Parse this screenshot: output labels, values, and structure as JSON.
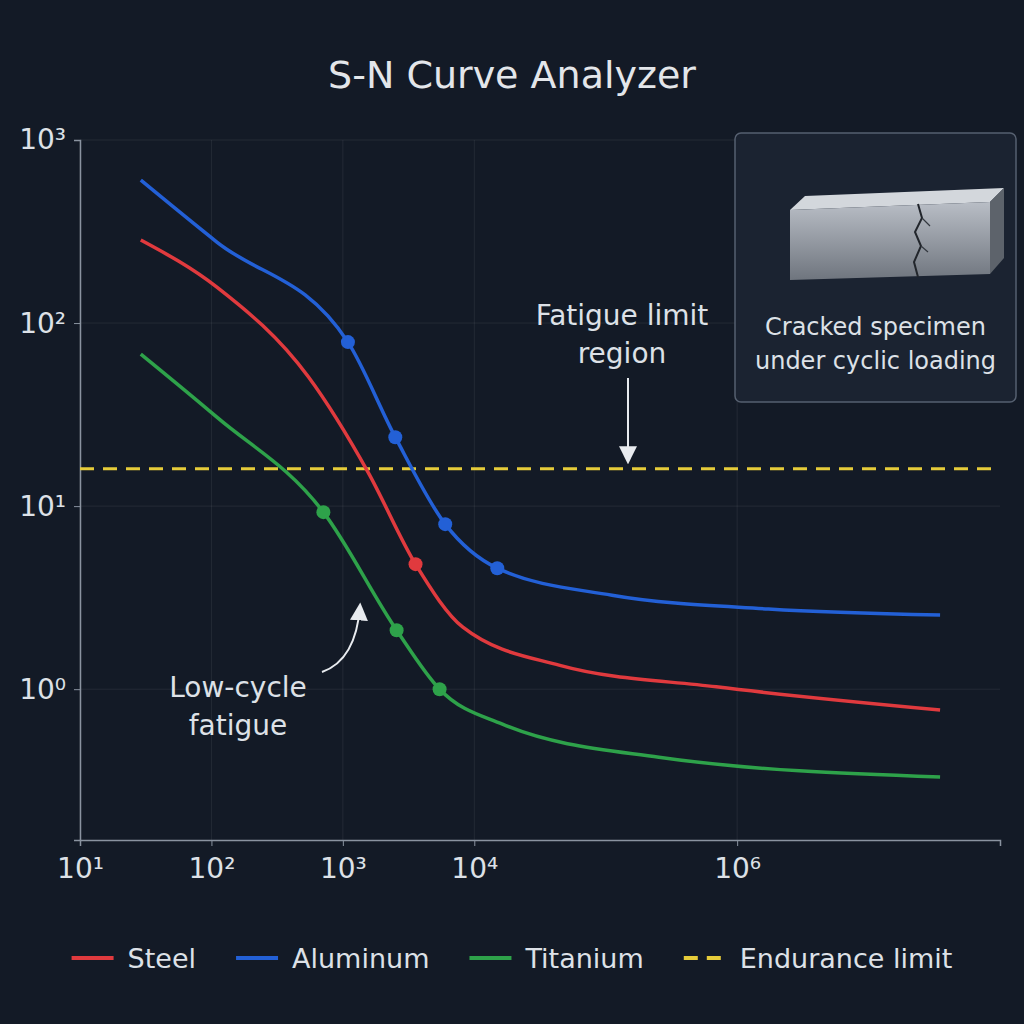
{
  "chart_data": {
    "type": "line",
    "title": "S-N Curve Analyzer",
    "log": true,
    "grid": true,
    "legend": "bottom",
    "xlim": [
      10,
      100000000
    ],
    "xticks": [
      {
        "value": 10,
        "label": "10¹"
      },
      {
        "value": 100,
        "label": "10²"
      },
      {
        "value": 1000,
        "label": "10³"
      },
      {
        "value": 10000,
        "label": "10⁴"
      },
      {
        "value": 1000000,
        "label": "10⁶"
      }
    ],
    "ylim": [
      0.15,
      1000
    ],
    "yticks": [
      {
        "value": 1,
        "label": "10⁰"
      },
      {
        "value": 10,
        "label": "10¹"
      },
      {
        "value": 100,
        "label": "10²"
      },
      {
        "value": 1000,
        "label": "10³"
      }
    ],
    "series": [
      {
        "name": "Steel",
        "color": "#e03a3e",
        "marker": "circle",
        "line_style": "solid",
        "x": [
          29,
          110,
          548,
          1557,
          3573,
          8185,
          44780,
          693000,
          35000000
        ],
        "values": [
          284,
          157,
          50.7,
          15.3,
          4.82,
          2.18,
          1.35,
          1.03,
          0.77
        ],
        "marked_x": [
          3573
        ],
        "marked_values": [
          4.82
        ]
      },
      {
        "name": "Aluminum",
        "color": "#2360d6",
        "marker": "circle",
        "line_style": "solid",
        "x": [
          29,
          110,
          1093,
          2506,
          6010,
          14960,
          111600,
          1730000,
          35000000
        ],
        "values": [
          604,
          277,
          78.7,
          23.8,
          7.97,
          4.58,
          3.26,
          2.74,
          2.54
        ],
        "marked_x": [
          1093,
          2506,
          6010,
          14960
        ],
        "marked_values": [
          78.7,
          23.8,
          7.97,
          4.58
        ]
      },
      {
        "name": "Titanium",
        "color": "#2ea24a",
        "marker": "circle",
        "line_style": "solid",
        "x": [
          29,
          110,
          711,
          2565,
          5445,
          16370,
          254000,
          35000000
        ],
        "values": [
          67.7,
          30.6,
          9.27,
          2.1,
          1.0,
          0.644,
          0.425,
          0.331
        ],
        "marked_x": [
          711,
          2565,
          5445
        ],
        "marked_values": [
          9.27,
          2.1,
          1.0
        ]
      }
    ],
    "reference_lines": [
      {
        "name": "Endurance limit",
        "value": 16,
        "color": "#e6cc3a",
        "line_style": "dashed"
      }
    ],
    "annotations": [
      {
        "text": [
          "Fatigue limit",
          "region"
        ]
      },
      {
        "text": [
          "Low-cycle",
          "fatigue"
        ]
      }
    ],
    "inset": {
      "caption": [
        "Cracked specimen",
        "under cyclic loading"
      ]
    }
  }
}
